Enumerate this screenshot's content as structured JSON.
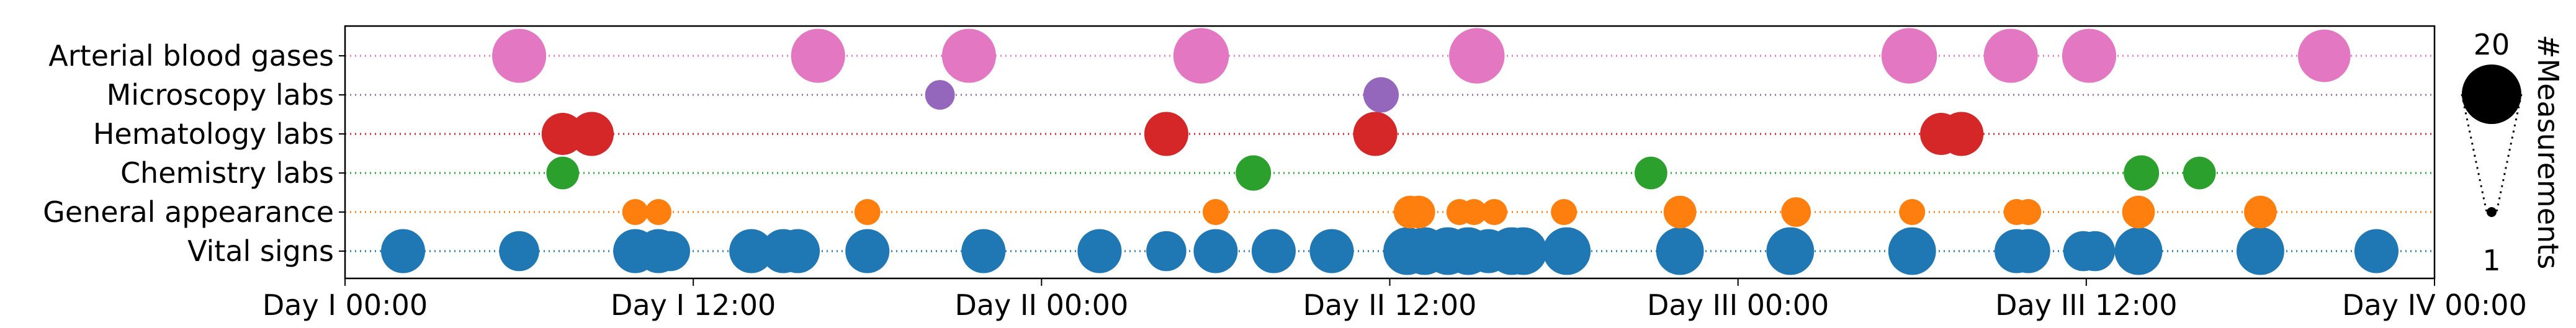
{
  "chart_data": {
    "type": "scatter",
    "title": "",
    "xlabel": "",
    "ylabel": "",
    "x_unit": "hours",
    "xlim": [
      0,
      72
    ],
    "x_ticks": [
      {
        "value": 0,
        "label": "Day I 00:00"
      },
      {
        "value": 12,
        "label": "Day I 12:00"
      },
      {
        "value": 24,
        "label": "Day II 00:00"
      },
      {
        "value": 36,
        "label": "Day II 12:00"
      },
      {
        "value": 48,
        "label": "Day III 00:00"
      },
      {
        "value": 60,
        "label": "Day III 12:00"
      },
      {
        "value": 72,
        "label": "Day IV 00:00"
      }
    ],
    "grid": false,
    "series": [
      {
        "name": "Vital signs",
        "color": "#1f77b4",
        "points": [
          {
            "x": 2.0,
            "count": 10
          },
          {
            "x": 6.0,
            "count": 8
          },
          {
            "x": 10.0,
            "count": 10
          },
          {
            "x": 10.8,
            "count": 10
          },
          {
            "x": 11.2,
            "count": 8
          },
          {
            "x": 14.0,
            "count": 10
          },
          {
            "x": 15.1,
            "count": 10
          },
          {
            "x": 15.6,
            "count": 10
          },
          {
            "x": 18.0,
            "count": 10
          },
          {
            "x": 22.0,
            "count": 10
          },
          {
            "x": 26.0,
            "count": 10
          },
          {
            "x": 28.3,
            "count": 8
          },
          {
            "x": 30.0,
            "count": 10
          },
          {
            "x": 32.0,
            "count": 10
          },
          {
            "x": 34.0,
            "count": 10
          },
          {
            "x": 36.6,
            "count": 12
          },
          {
            "x": 37.2,
            "count": 12
          },
          {
            "x": 38.0,
            "count": 12
          },
          {
            "x": 38.7,
            "count": 12
          },
          {
            "x": 39.4,
            "count": 10
          },
          {
            "x": 40.2,
            "count": 12
          },
          {
            "x": 40.6,
            "count": 12
          },
          {
            "x": 42.1,
            "count": 12
          },
          {
            "x": 46.0,
            "count": 12
          },
          {
            "x": 49.8,
            "count": 12
          },
          {
            "x": 54.0,
            "count": 12
          },
          {
            "x": 57.6,
            "count": 10
          },
          {
            "x": 58.0,
            "count": 10
          },
          {
            "x": 59.9,
            "count": 8
          },
          {
            "x": 60.3,
            "count": 8
          },
          {
            "x": 61.8,
            "count": 12
          },
          {
            "x": 66.0,
            "count": 12
          },
          {
            "x": 70.0,
            "count": 10
          }
        ]
      },
      {
        "name": "General appearance",
        "color": "#ff7f0e",
        "points": [
          {
            "x": 10.0,
            "count": 3
          },
          {
            "x": 10.8,
            "count": 3
          },
          {
            "x": 18.0,
            "count": 3
          },
          {
            "x": 30.0,
            "count": 3
          },
          {
            "x": 36.7,
            "count": 5
          },
          {
            "x": 37.0,
            "count": 5
          },
          {
            "x": 38.4,
            "count": 3
          },
          {
            "x": 38.9,
            "count": 3
          },
          {
            "x": 39.6,
            "count": 3
          },
          {
            "x": 42.0,
            "count": 3
          },
          {
            "x": 46.0,
            "count": 5
          },
          {
            "x": 50.0,
            "count": 4
          },
          {
            "x": 54.0,
            "count": 3
          },
          {
            "x": 57.6,
            "count": 3
          },
          {
            "x": 58.0,
            "count": 3
          },
          {
            "x": 61.8,
            "count": 5
          },
          {
            "x": 66.0,
            "count": 5
          }
        ]
      },
      {
        "name": "Chemistry labs",
        "color": "#2ca02c",
        "points": [
          {
            "x": 7.5,
            "count": 5
          },
          {
            "x": 31.3,
            "count": 6
          },
          {
            "x": 45.0,
            "count": 5
          },
          {
            "x": 61.9,
            "count": 6
          },
          {
            "x": 63.9,
            "count": 5
          }
        ]
      },
      {
        "name": "Hematology labs",
        "color": "#d62728",
        "points": [
          {
            "x": 7.5,
            "count": 9
          },
          {
            "x": 8.5,
            "count": 10
          },
          {
            "x": 28.3,
            "count": 10
          },
          {
            "x": 35.5,
            "count": 10
          },
          {
            "x": 55.0,
            "count": 9
          },
          {
            "x": 55.7,
            "count": 10
          }
        ]
      },
      {
        "name": "Microscopy labs",
        "color": "#9467bd",
        "points": [
          {
            "x": 20.5,
            "count": 4
          },
          {
            "x": 35.7,
            "count": 6
          }
        ]
      },
      {
        "name": "Arterial blood gases",
        "color": "#e377c2",
        "points": [
          {
            "x": 6.0,
            "count": 16
          },
          {
            "x": 16.3,
            "count": 16
          },
          {
            "x": 21.5,
            "count": 16
          },
          {
            "x": 29.5,
            "count": 17
          },
          {
            "x": 39.0,
            "count": 17
          },
          {
            "x": 53.9,
            "count": 17
          },
          {
            "x": 57.4,
            "count": 16
          },
          {
            "x": 60.1,
            "count": 16
          },
          {
            "x": 68.2,
            "count": 15
          }
        ]
      }
    ],
    "size_legend": {
      "title": "#Measurements",
      "max_label": "20",
      "min_label": "1",
      "max_value": 20,
      "min_value": 1
    }
  }
}
